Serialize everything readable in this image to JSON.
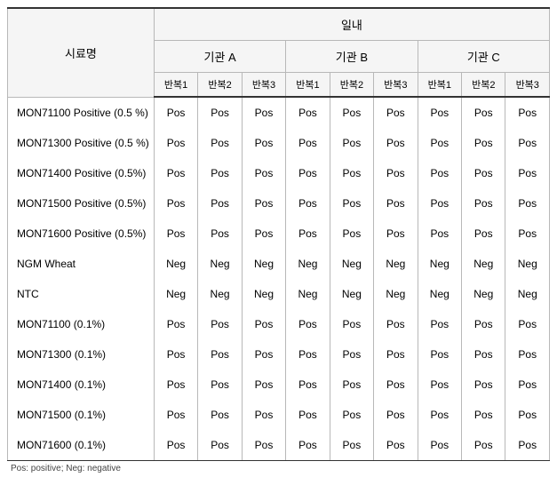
{
  "header": {
    "sample_label": "시료명",
    "top_group": "일내",
    "institutes": [
      "기관 A",
      "기관 B",
      "기관 C"
    ],
    "replicates": [
      "반복1",
      "반복2",
      "반복3"
    ]
  },
  "rows": [
    {
      "name": "MON71100 Positive (0.5 %)",
      "vals": [
        "Pos",
        "Pos",
        "Pos",
        "Pos",
        "Pos",
        "Pos",
        "Pos",
        "Pos",
        "Pos"
      ]
    },
    {
      "name": "MON71300 Positive (0.5 %)",
      "vals": [
        "Pos",
        "Pos",
        "Pos",
        "Pos",
        "Pos",
        "Pos",
        "Pos",
        "Pos",
        "Pos"
      ]
    },
    {
      "name": "MON71400 Positive (0.5%)",
      "vals": [
        "Pos",
        "Pos",
        "Pos",
        "Pos",
        "Pos",
        "Pos",
        "Pos",
        "Pos",
        "Pos"
      ]
    },
    {
      "name": "MON71500 Positive (0.5%)",
      "vals": [
        "Pos",
        "Pos",
        "Pos",
        "Pos",
        "Pos",
        "Pos",
        "Pos",
        "Pos",
        "Pos"
      ]
    },
    {
      "name": "MON71600 Positive (0.5%)",
      "vals": [
        "Pos",
        "Pos",
        "Pos",
        "Pos",
        "Pos",
        "Pos",
        "Pos",
        "Pos",
        "Pos"
      ]
    },
    {
      "name": "NGM Wheat",
      "vals": [
        "Neg",
        "Neg",
        "Neg",
        "Neg",
        "Neg",
        "Neg",
        "Neg",
        "Neg",
        "Neg"
      ]
    },
    {
      "name": "NTC",
      "vals": [
        "Neg",
        "Neg",
        "Neg",
        "Neg",
        "Neg",
        "Neg",
        "Neg",
        "Neg",
        "Neg"
      ]
    },
    {
      "name": "MON71100 (0.1%)",
      "vals": [
        "Pos",
        "Pos",
        "Pos",
        "Pos",
        "Pos",
        "Pos",
        "Pos",
        "Pos",
        "Pos"
      ]
    },
    {
      "name": "MON71300 (0.1%)",
      "vals": [
        "Pos",
        "Pos",
        "Pos",
        "Pos",
        "Pos",
        "Pos",
        "Pos",
        "Pos",
        "Pos"
      ]
    },
    {
      "name": "MON71400 (0.1%)",
      "vals": [
        "Pos",
        "Pos",
        "Pos",
        "Pos",
        "Pos",
        "Pos",
        "Pos",
        "Pos",
        "Pos"
      ]
    },
    {
      "name": "MON71500 (0.1%)",
      "vals": [
        "Pos",
        "Pos",
        "Pos",
        "Pos",
        "Pos",
        "Pos",
        "Pos",
        "Pos",
        "Pos"
      ]
    },
    {
      "name": "MON71600 (0.1%)",
      "vals": [
        "Pos",
        "Pos",
        "Pos",
        "Pos",
        "Pos",
        "Pos",
        "Pos",
        "Pos",
        "Pos"
      ]
    }
  ],
  "footnote": "Pos: positive; Neg: negative",
  "styling": {
    "header_bg": "#f5f5f5",
    "border_color": "#b8b8b8",
    "top_border": "#333333",
    "font_sizes": {
      "header": 13,
      "subhead": 11,
      "cell": 12,
      "footnote": 10
    }
  }
}
